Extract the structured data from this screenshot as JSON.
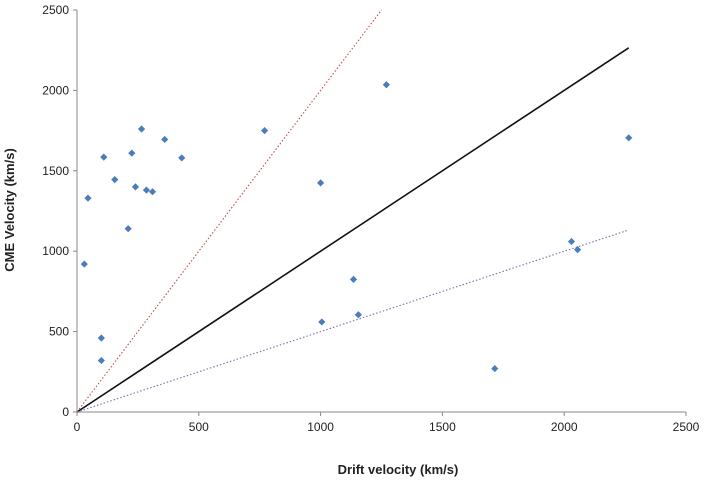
{
  "chart_data": {
    "type": "scatter",
    "title": "",
    "xlabel": "Drift velocity (km/s)",
    "ylabel": "CME Velocity (km/s)",
    "xlim": [
      0,
      2500
    ],
    "ylim": [
      0,
      2500
    ],
    "xticks": [
      0,
      500,
      1000,
      1500,
      2000,
      2500
    ],
    "yticks": [
      0,
      500,
      1000,
      1500,
      2000,
      2500
    ],
    "grid": false,
    "legend": "none",
    "series": [
      {
        "marker": "diamond",
        "color": "#4a7ebb",
        "points": [
          {
            "x": 30,
            "y": 920
          },
          {
            "x": 45,
            "y": 1330
          },
          {
            "x": 100,
            "y": 460
          },
          {
            "x": 100,
            "y": 320
          },
          {
            "x": 110,
            "y": 1585
          },
          {
            "x": 155,
            "y": 1445
          },
          {
            "x": 210,
            "y": 1140
          },
          {
            "x": 225,
            "y": 1610
          },
          {
            "x": 240,
            "y": 1400
          },
          {
            "x": 265,
            "y": 1760
          },
          {
            "x": 285,
            "y": 1380
          },
          {
            "x": 310,
            "y": 1370
          },
          {
            "x": 360,
            "y": 1695
          },
          {
            "x": 430,
            "y": 1580
          },
          {
            "x": 770,
            "y": 1750
          },
          {
            "x": 1000,
            "y": 1425
          },
          {
            "x": 1005,
            "y": 560
          },
          {
            "x": 1135,
            "y": 825
          },
          {
            "x": 1155,
            "y": 605
          },
          {
            "x": 1270,
            "y": 2035
          },
          {
            "x": 1715,
            "y": 270
          },
          {
            "x": 2030,
            "y": 1060
          },
          {
            "x": 2055,
            "y": 1010
          },
          {
            "x": 2265,
            "y": 1705
          }
        ]
      }
    ],
    "reference_lines": [
      {
        "style": "solid",
        "color": "#111111",
        "from": [
          0,
          0
        ],
        "to": [
          2265,
          2265
        ]
      },
      {
        "style": "dotted",
        "color": "#c0504d",
        "from": [
          0,
          0
        ],
        "to": [
          1250,
          2500
        ]
      },
      {
        "style": "dotted",
        "color": "#7a6fb0",
        "from": [
          0,
          0
        ],
        "to": [
          2265,
          1132
        ]
      }
    ]
  }
}
